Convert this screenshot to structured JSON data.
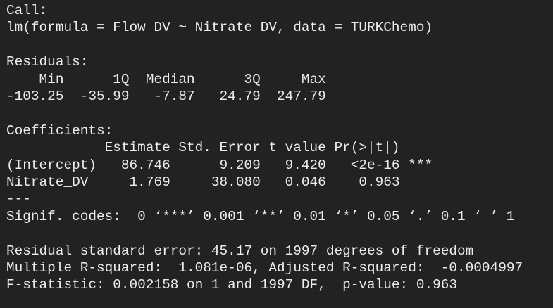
{
  "call": {
    "heading": "Call:",
    "formula": "lm(formula = Flow_DV ~ Nitrate_DV, data = TURKChemo)"
  },
  "residuals": {
    "heading": "Residuals:",
    "header": "    Min      1Q  Median      3Q     Max",
    "values": "-103.25  -35.99   -7.87   24.79  247.79"
  },
  "coefficients": {
    "heading": "Coefficients:",
    "header": "            Estimate Std. Error t value Pr(>|t|)",
    "rows": [
      "(Intercept)   86.746      9.209   9.420   <2e-16 ***",
      "Nitrate_DV     1.769     38.080   0.046    0.963"
    ],
    "separator": "---",
    "signif": "Signif. codes:  0 ‘***’ 0.001 ‘**’ 0.01 ‘*’ 0.05 ‘.’ 0.1 ‘ ’ 1"
  },
  "summary": [
    "Residual standard error: 45.17 on 1997 degrees of freedom",
    "Multiple R-squared:  1.081e-06,\tAdjusted R-squared:  -0.0004997",
    "F-statistic: 0.002158 on 1 and 1997 DF,  p-value: 0.963"
  ]
}
